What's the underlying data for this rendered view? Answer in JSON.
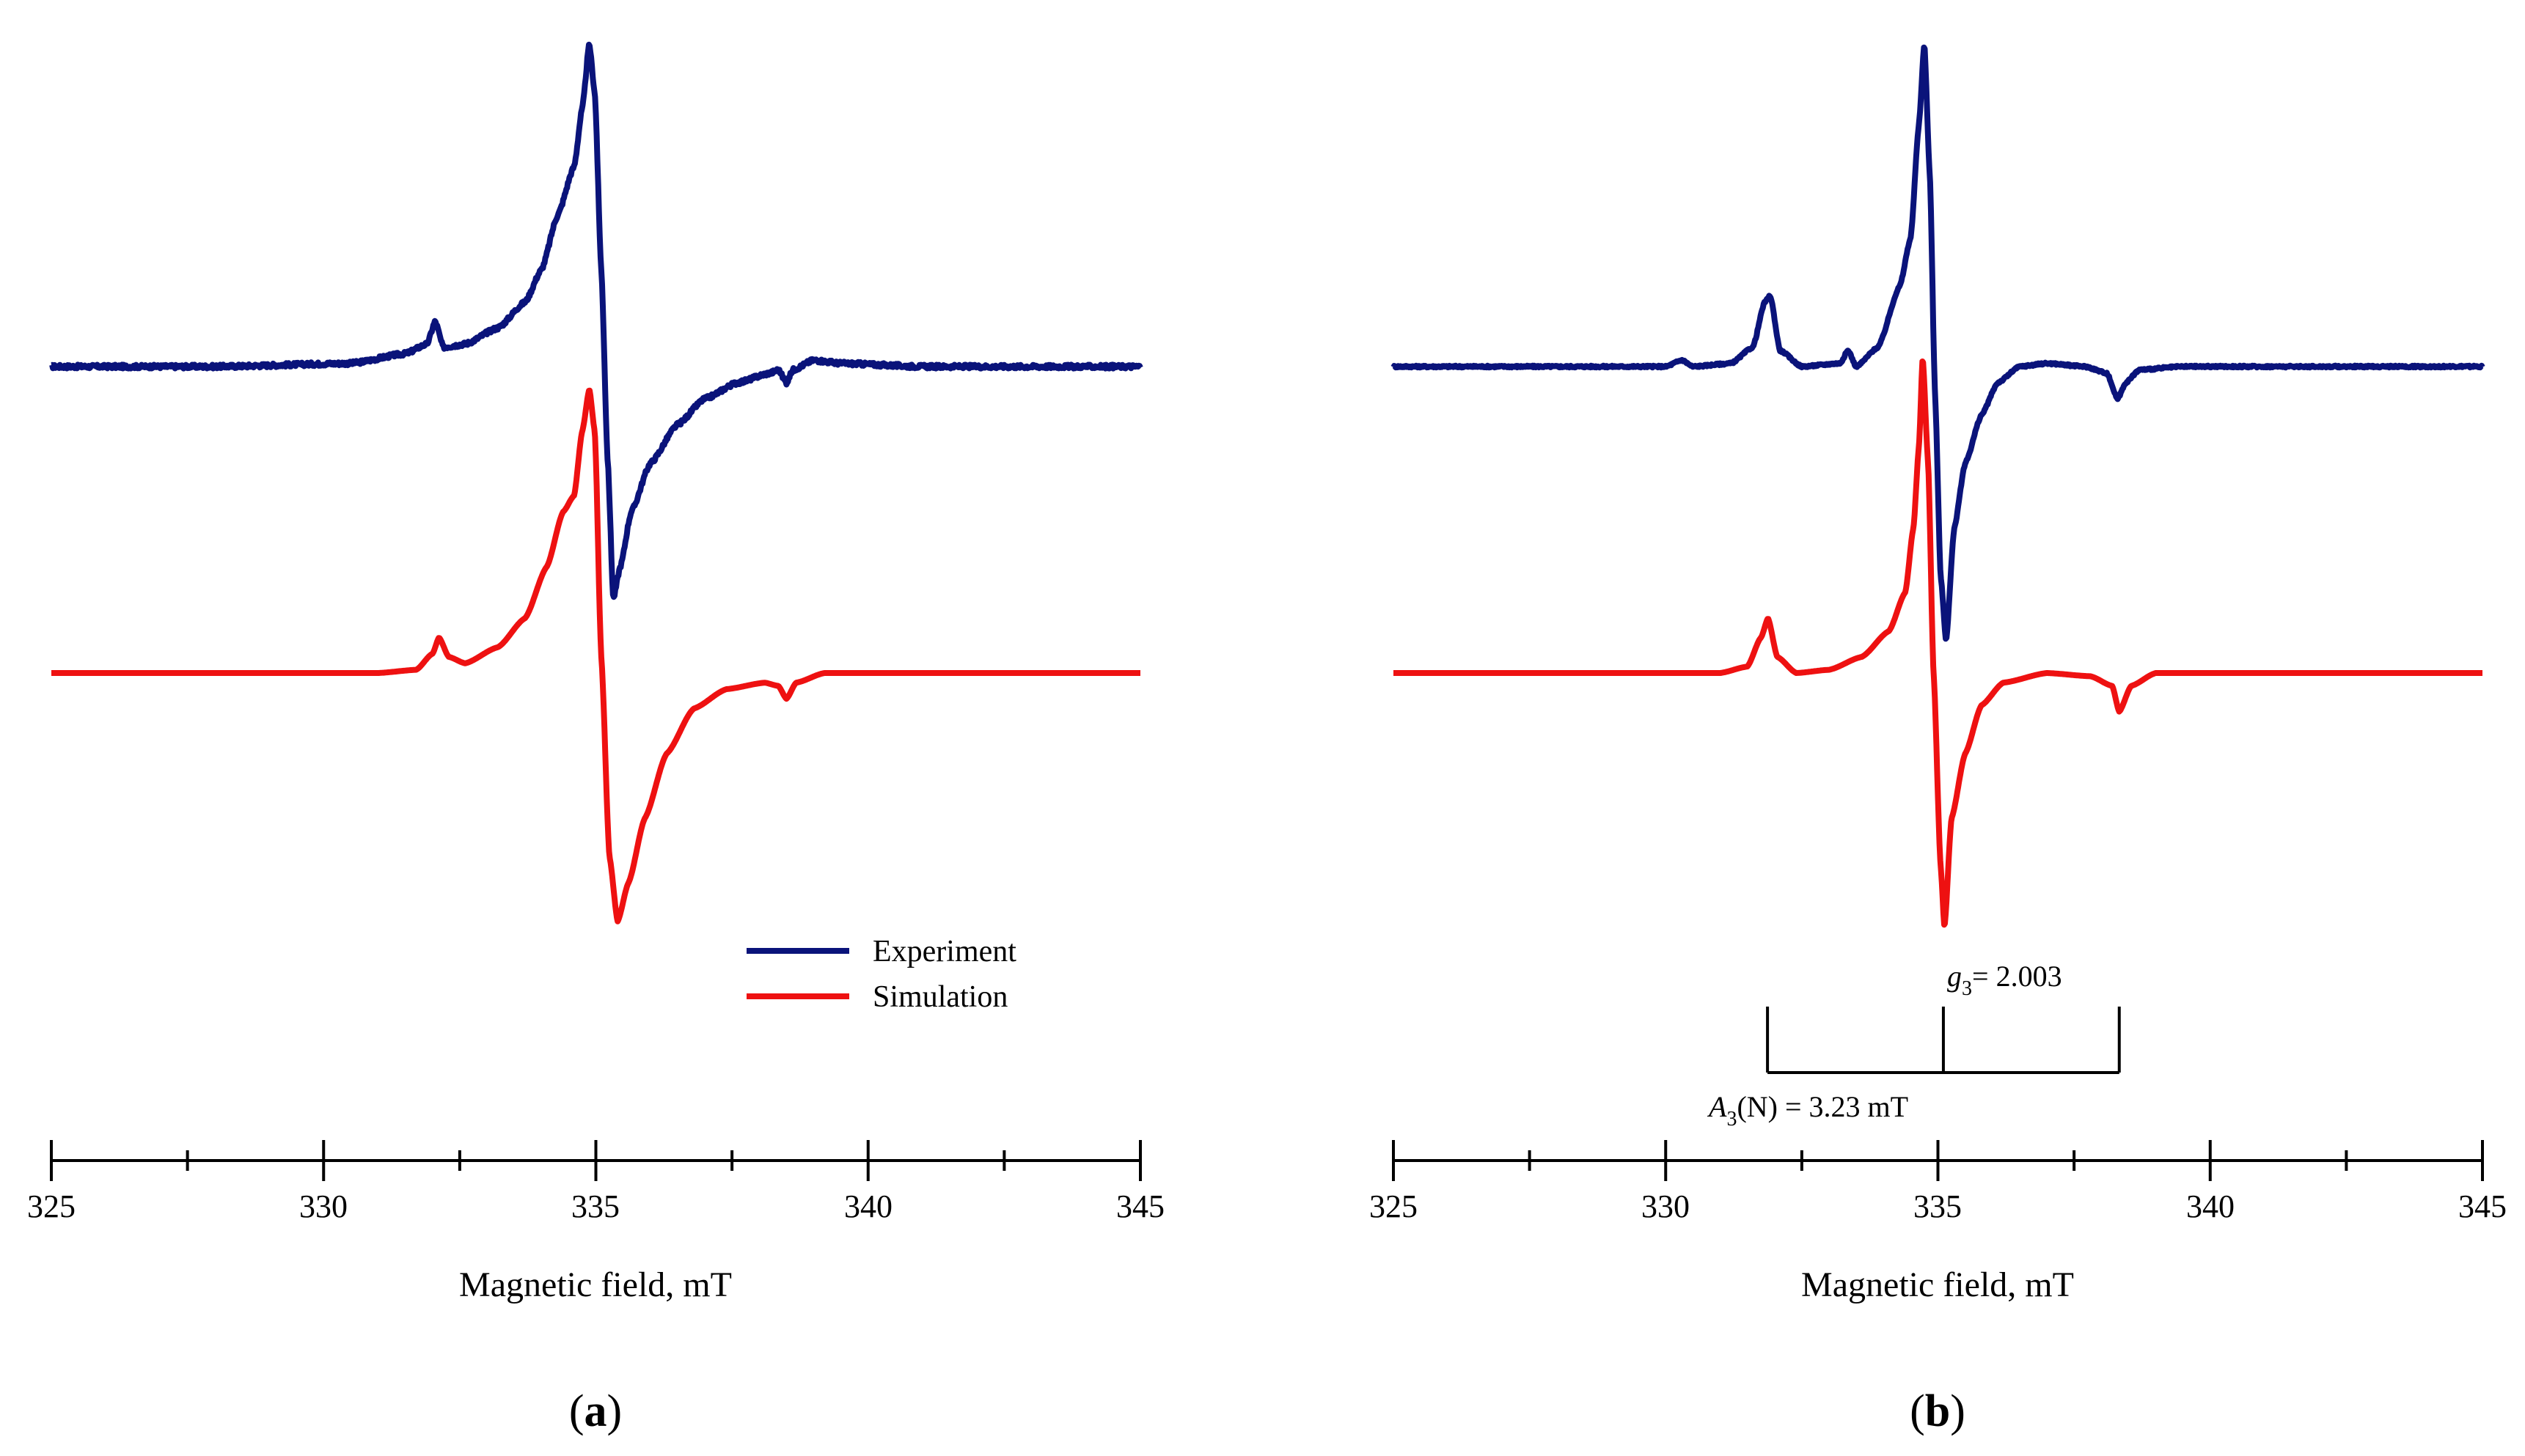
{
  "chart_data": [
    {
      "type": "line",
      "panel_label": "a",
      "xlabel": "Magnetic field, mT",
      "xlim": [
        325,
        345
      ],
      "x_ticks": [
        325,
        330,
        335,
        340,
        345
      ],
      "x_tick_labels": [
        "325",
        "330",
        "335",
        "340",
        "345"
      ],
      "legend": {
        "placement": "bottom-right",
        "entries": [
          {
            "label": "Experiment",
            "color": "#0a137a"
          },
          {
            "label": "Simulation",
            "color": "#ee1111"
          }
        ]
      },
      "series": [
        {
          "name": "Experiment",
          "color": "#0a137a",
          "baseline": 0.0,
          "noise": 0.006,
          "points": [
            [
              325.0,
              0.0
            ],
            [
              328.0,
              0.0
            ],
            [
              330.5,
              0.01
            ],
            [
              331.5,
              0.04
            ],
            [
              331.9,
              0.07
            ],
            [
              332.05,
              0.14
            ],
            [
              332.2,
              0.06
            ],
            [
              332.6,
              0.07
            ],
            [
              333.2,
              0.12
            ],
            [
              333.7,
              0.2
            ],
            [
              334.0,
              0.3
            ],
            [
              334.3,
              0.47
            ],
            [
              334.6,
              0.62
            ],
            [
              334.75,
              0.8
            ],
            [
              334.88,
              1.0
            ],
            [
              334.98,
              0.85
            ],
            [
              335.1,
              0.3
            ],
            [
              335.22,
              -0.3
            ],
            [
              335.32,
              -0.72
            ],
            [
              335.45,
              -0.62
            ],
            [
              335.65,
              -0.45
            ],
            [
              336.0,
              -0.3
            ],
            [
              336.5,
              -0.18
            ],
            [
              337.0,
              -0.1
            ],
            [
              337.6,
              -0.05
            ],
            [
              338.2,
              -0.02
            ],
            [
              338.35,
              -0.01
            ],
            [
              338.5,
              -0.05
            ],
            [
              338.62,
              -0.01
            ],
            [
              339.0,
              0.02
            ],
            [
              339.5,
              0.01
            ],
            [
              341.0,
              0.0
            ],
            [
              345.0,
              0.0
            ]
          ]
        },
        {
          "name": "Simulation",
          "color": "#ee1111",
          "baseline": -0.95,
          "noise": 0,
          "points": [
            [
              325.0,
              -0.95
            ],
            [
              331.0,
              -0.95
            ],
            [
              331.7,
              -0.94
            ],
            [
              332.0,
              -0.89
            ],
            [
              332.12,
              -0.84
            ],
            [
              332.3,
              -0.9
            ],
            [
              332.6,
              -0.92
            ],
            [
              333.2,
              -0.87
            ],
            [
              333.7,
              -0.78
            ],
            [
              334.1,
              -0.62
            ],
            [
              334.4,
              -0.45
            ],
            [
              334.6,
              -0.4
            ],
            [
              334.75,
              -0.2
            ],
            [
              334.88,
              -0.07
            ],
            [
              334.98,
              -0.2
            ],
            [
              335.1,
              -0.9
            ],
            [
              335.25,
              -1.52
            ],
            [
              335.4,
              -1.72
            ],
            [
              335.6,
              -1.6
            ],
            [
              335.9,
              -1.4
            ],
            [
              336.3,
              -1.2
            ],
            [
              336.8,
              -1.06
            ],
            [
              337.4,
              -1.0
            ],
            [
              338.1,
              -0.98
            ],
            [
              338.35,
              -0.99
            ],
            [
              338.5,
              -1.03
            ],
            [
              338.68,
              -0.98
            ],
            [
              339.2,
              -0.95
            ],
            [
              345.0,
              -0.95
            ]
          ]
        }
      ]
    },
    {
      "type": "line",
      "panel_label": "b",
      "xlabel": "Magnetic field, mT",
      "xlim": [
        325,
        345
      ],
      "x_ticks": [
        325,
        330,
        335,
        340,
        345
      ],
      "x_tick_labels": [
        "325",
        "330",
        "335",
        "340",
        "345"
      ],
      "annotations": {
        "g_value_label": "2.003",
        "g_value_field": 335.1,
        "g_symbol": "g",
        "g_subscript": "3",
        "hyperfine_label": "(N) = 3.23 mT",
        "hyperfine_symbol": "A",
        "hyperfine_subscript": "3",
        "hyperfine_splitting_mT": 3.23,
        "hyperfine_lines": [
          331.87,
          335.1,
          338.33
        ]
      },
      "series": [
        {
          "name": "Experiment",
          "color": "#0a137a",
          "baseline": 0.0,
          "noise": 0.003,
          "points": [
            [
              325.0,
              0.0
            ],
            [
              330.0,
              0.0
            ],
            [
              330.3,
              0.02
            ],
            [
              330.5,
              0.0
            ],
            [
              331.2,
              0.01
            ],
            [
              331.6,
              0.06
            ],
            [
              331.82,
              0.2
            ],
            [
              331.92,
              0.22
            ],
            [
              332.1,
              0.05
            ],
            [
              332.5,
              0.0
            ],
            [
              333.2,
              0.01
            ],
            [
              333.35,
              0.05
            ],
            [
              333.5,
              0.0
            ],
            [
              333.9,
              0.06
            ],
            [
              334.3,
              0.25
            ],
            [
              334.5,
              0.4
            ],
            [
              334.65,
              0.75
            ],
            [
              334.75,
              1.0
            ],
            [
              334.85,
              0.6
            ],
            [
              334.95,
              -0.1
            ],
            [
              335.05,
              -0.65
            ],
            [
              335.15,
              -0.85
            ],
            [
              335.3,
              -0.5
            ],
            [
              335.5,
              -0.3
            ],
            [
              335.8,
              -0.15
            ],
            [
              336.1,
              -0.05
            ],
            [
              336.5,
              0.0
            ],
            [
              337.0,
              0.01
            ],
            [
              337.7,
              0.0
            ],
            [
              338.1,
              -0.02
            ],
            [
              338.3,
              -0.1
            ],
            [
              338.45,
              -0.05
            ],
            [
              338.7,
              -0.01
            ],
            [
              339.5,
              0.0
            ],
            [
              345.0,
              0.0
            ]
          ]
        },
        {
          "name": "Simulation",
          "color": "#ee1111",
          "baseline": -0.95,
          "noise": 0,
          "points": [
            [
              325.0,
              -0.95
            ],
            [
              331.0,
              -0.95
            ],
            [
              331.5,
              -0.93
            ],
            [
              331.75,
              -0.84
            ],
            [
              331.88,
              -0.78
            ],
            [
              332.05,
              -0.9
            ],
            [
              332.4,
              -0.95
            ],
            [
              333.0,
              -0.94
            ],
            [
              333.6,
              -0.9
            ],
            [
              334.1,
              -0.82
            ],
            [
              334.4,
              -0.7
            ],
            [
              334.55,
              -0.5
            ],
            [
              334.65,
              -0.25
            ],
            [
              334.72,
              0.03
            ],
            [
              334.82,
              -0.3
            ],
            [
              334.92,
              -0.95
            ],
            [
              335.05,
              -1.55
            ],
            [
              335.12,
              -1.74
            ],
            [
              335.25,
              -1.4
            ],
            [
              335.5,
              -1.2
            ],
            [
              335.8,
              -1.05
            ],
            [
              336.2,
              -0.98
            ],
            [
              337.0,
              -0.95
            ],
            [
              337.8,
              -0.96
            ],
            [
              338.2,
              -0.99
            ],
            [
              338.33,
              -1.07
            ],
            [
              338.55,
              -0.99
            ],
            [
              339.0,
              -0.95
            ],
            [
              345.0,
              -0.95
            ]
          ]
        }
      ]
    }
  ]
}
